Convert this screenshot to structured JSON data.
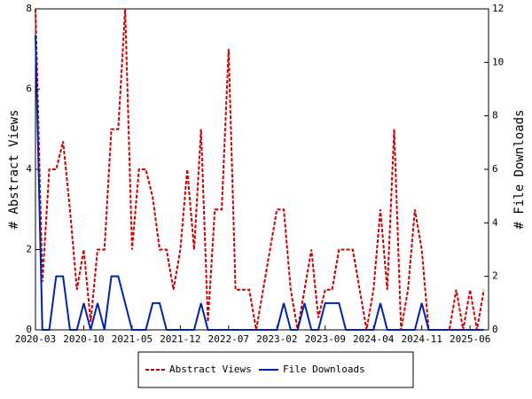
{
  "chart_data": {
    "type": "line",
    "ylabel": "# Abstract Views",
    "y2label": "# File Downloads",
    "categories": [
      "2020-03",
      null,
      null,
      null,
      null,
      null,
      null,
      "2020-10",
      null,
      null,
      null,
      null,
      null,
      null,
      "2021-05",
      null,
      null,
      null,
      null,
      null,
      null,
      "2021-12",
      null,
      null,
      null,
      null,
      null,
      null,
      "2022-07",
      null,
      null,
      null,
      null,
      null,
      null,
      "2023-02",
      null,
      null,
      null,
      null,
      null,
      null,
      "2023-09",
      null,
      null,
      null,
      null,
      null,
      null,
      "2024-04",
      null,
      null,
      null,
      null,
      null,
      null,
      "2024-11",
      null,
      null,
      null,
      null,
      null,
      null,
      "2025-06",
      null,
      null
    ],
    "series": [
      {
        "name": "Abstract Views",
        "color": "#cc0000",
        "dash": true,
        "values": [
          8,
          1.2,
          4,
          4,
          4.7,
          3,
          1,
          2,
          0.2,
          2,
          2,
          5,
          5,
          8,
          2,
          4,
          4,
          3.3,
          2,
          2,
          1,
          2,
          4,
          2,
          5,
          0.2,
          3,
          3,
          7,
          1,
          1,
          1,
          0,
          1,
          2,
          3,
          3,
          1,
          0,
          1,
          2,
          0.3,
          1,
          1,
          2,
          2,
          2,
          1,
          0,
          1,
          3,
          1,
          5,
          0,
          1,
          3,
          2,
          0,
          0,
          0,
          0,
          1,
          0,
          1,
          0,
          1
        ]
      },
      {
        "name": "File Downloads",
        "color": "#0022aa",
        "axis": "y2",
        "values": [
          11,
          0,
          0,
          2,
          2,
          0,
          0,
          1,
          0,
          1,
          0,
          2,
          2,
          1,
          0,
          0,
          0,
          1,
          1,
          0,
          0,
          0,
          0,
          0,
          1,
          0,
          0,
          0,
          0,
          0,
          0,
          0,
          0,
          0,
          0,
          0,
          1,
          0,
          0,
          1,
          0,
          0,
          1,
          1,
          1,
          0,
          0,
          0,
          0,
          0,
          1,
          0,
          0,
          0,
          0,
          0,
          1,
          0,
          0,
          0,
          0,
          0,
          0,
          0,
          0,
          0
        ]
      }
    ],
    "ylim": [
      0,
      8
    ],
    "yticks": [
      0,
      2,
      4,
      6,
      8
    ],
    "y2lim": [
      0,
      12
    ],
    "y2ticks": [
      0,
      2,
      4,
      6,
      8,
      10,
      12
    ],
    "legend": "bottom"
  }
}
